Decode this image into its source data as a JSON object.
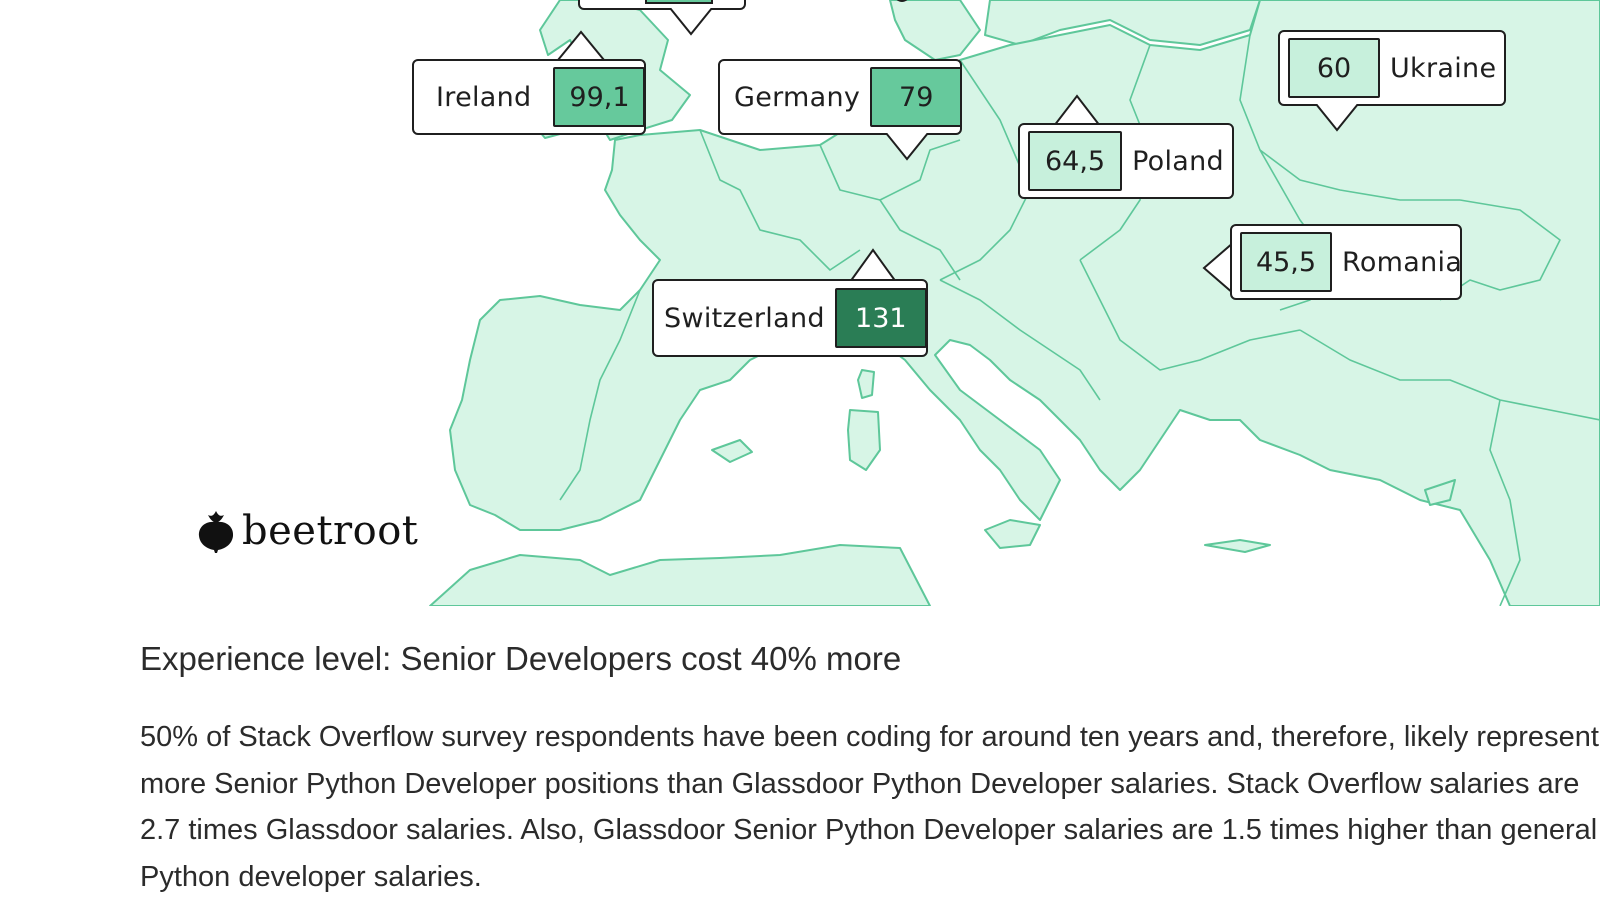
{
  "map": {
    "land_color": "#d7f5e6",
    "border_color": "#5ec79a",
    "pins": [
      {
        "country": "Ireland",
        "value": "99,1",
        "color": "#66c99c"
      },
      {
        "country": "Germany",
        "value": "79",
        "color": "#66c99c"
      },
      {
        "country": "Poland",
        "value": "64,5",
        "color": "#c7f0dc"
      },
      {
        "country": "Ukraine",
        "value": "60",
        "color": "#c7f0dc"
      },
      {
        "country": "Romania",
        "value": "45,5",
        "color": "#c7f0dc"
      },
      {
        "country": "Switzerland",
        "value": "131",
        "color": "#2a7d55"
      }
    ]
  },
  "logo": {
    "name": "beetroot",
    "icon": "beetroot-icon"
  },
  "article": {
    "heading": "Experience level: Senior Developers cost 40% more",
    "paragraph": "50% of Stack Overflow survey respondents have been coding for around ten years and, therefore, likely represent more Senior Python Developer positions than Glassdoor Python Developer salaries. Stack Overflow salaries are 2.7 times Glassdoor salaries. Also, Glassdoor Senior Python Developer salaries are 1.5 times higher than general Python developer salaries."
  }
}
